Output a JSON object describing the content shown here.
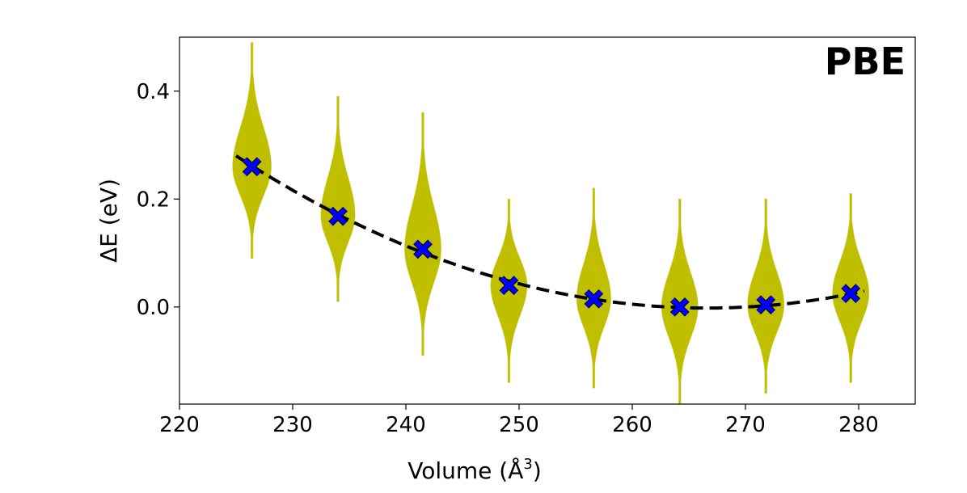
{
  "chart_data": {
    "type": "scatter",
    "panel_label": "PBE",
    "xlabel": "Volume (Å",
    "xlabel_sup": "3",
    "xlabel_close": ")",
    "ylabel": "ΔE (eV)",
    "xlim": [
      220,
      285
    ],
    "ylim": [
      -0.18,
      0.5
    ],
    "x_ticks": [
      220,
      230,
      240,
      250,
      260,
      270,
      280
    ],
    "x_tick_labels": [
      "220",
      "230",
      "240",
      "250",
      "260",
      "270",
      "280"
    ],
    "y_ticks": [
      0.0,
      0.2,
      0.4
    ],
    "y_tick_labels": [
      "0.0",
      "0.2",
      "0.4"
    ],
    "grid": false,
    "colors": {
      "distribution": "#bfbf00",
      "marker": "#0000ff",
      "fit": "#000000"
    },
    "distributions": [
      {
        "x": 226.4,
        "center": 0.26,
        "low": 0.09,
        "high": 0.49,
        "halfwidth": 1.7
      },
      {
        "x": 234.0,
        "center": 0.17,
        "low": 0.01,
        "high": 0.39,
        "halfwidth": 1.5
      },
      {
        "x": 241.5,
        "center": 0.107,
        "low": -0.09,
        "high": 0.36,
        "halfwidth": 1.6
      },
      {
        "x": 249.1,
        "center": 0.04,
        "low": -0.14,
        "high": 0.2,
        "halfwidth": 1.6
      },
      {
        "x": 256.6,
        "center": 0.015,
        "low": -0.15,
        "high": 0.22,
        "halfwidth": 1.5
      },
      {
        "x": 264.2,
        "center": 0.0,
        "low": -0.18,
        "high": 0.2,
        "halfwidth": 1.6
      },
      {
        "x": 271.8,
        "center": 0.004,
        "low": -0.16,
        "high": 0.2,
        "halfwidth": 1.6
      },
      {
        "x": 279.3,
        "center": 0.025,
        "low": -0.14,
        "high": 0.21,
        "halfwidth": 1.6
      }
    ],
    "mean_points": [
      {
        "x": 226.4,
        "y": 0.26
      },
      {
        "x": 234.0,
        "y": 0.168
      },
      {
        "x": 241.5,
        "y": 0.107
      },
      {
        "x": 249.1,
        "y": 0.04
      },
      {
        "x": 256.6,
        "y": 0.015
      },
      {
        "x": 264.2,
        "y": 0.0
      },
      {
        "x": 271.8,
        "y": 0.004
      },
      {
        "x": 279.3,
        "y": 0.025
      }
    ],
    "fit_curve": {
      "style": "dashed",
      "form": "quadratic",
      "x_range": [
        225.0,
        280.5
      ],
      "x_min": 266.6,
      "y_min": -0.002,
      "curvature": 0.000163
    }
  }
}
